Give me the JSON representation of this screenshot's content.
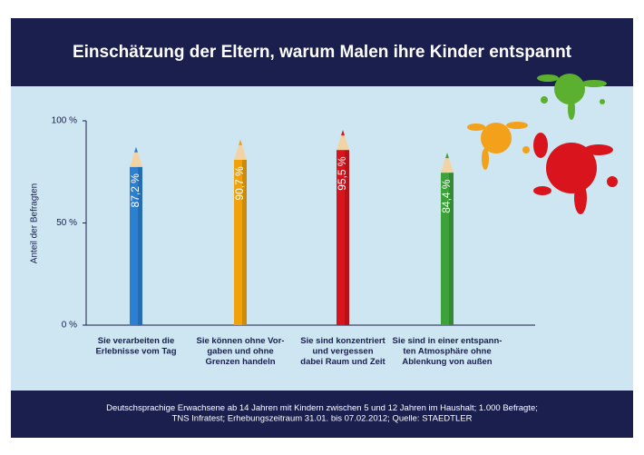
{
  "chart_data": {
    "type": "pencil-bar",
    "title": "Einschätzung der Eltern, warum Malen ihre Kinder entspannt",
    "y_label": "Anteil der Befragten",
    "categories": [
      "Sie verarbeiten die\nErlebnisse vom Tag",
      "Sie können ohne Vor-\ngaben und ohne\nGrenzen handeln",
      "Sie sind konzentriert\nund vergessen\ndabei Raum und Zeit",
      "Sie sind in einer entspann-\nten Atmosphäre ohne\nAblenkung von außen"
    ],
    "values": [
      87.2,
      90.7,
      95.5,
      84.4
    ],
    "value_labels": [
      "87,2 %",
      "90,7 %",
      "95,5 %",
      "84,4 %"
    ],
    "colors": [
      "#2b80d2",
      "#f0a10c",
      "#d9141d",
      "#3ea23b"
    ],
    "ylim": [
      0,
      100
    ],
    "yticks": [
      {
        "value": 0,
        "label": "0 %"
      },
      {
        "value": 50,
        "label": "50 %"
      },
      {
        "value": 100,
        "label": "100 %"
      }
    ],
    "footer": "Deutschsprachige Erwachsene ab 14 Jahren mit Kindern zwischen 5 und 12 Jahren im Haushalt; 1.000 Befragte;\nTNS Infratest; Erhebungszeitraum 31.01. bis 07.02.2012; Quelle: STAEDTLER"
  }
}
